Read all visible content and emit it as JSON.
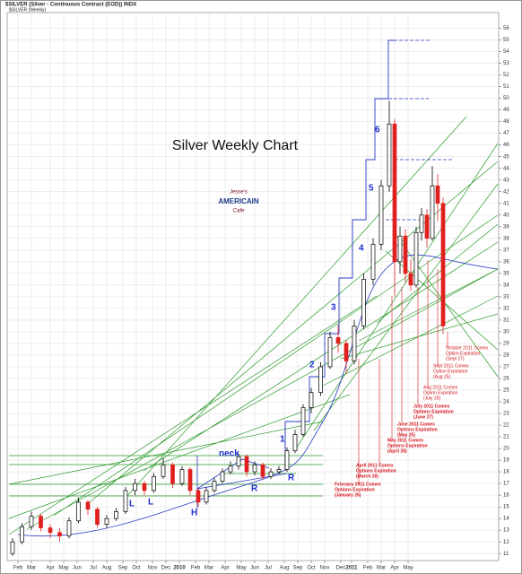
{
  "chart_data": {
    "type": "candlestick",
    "header": "$SILVER (Silver - Continuous Contract (EOD)) INDX",
    "subheader": "$SILVER (Weekly)",
    "title": "Silver Weekly Chart",
    "logo": [
      "Jesse's",
      "AMERICAIN",
      "Cafe"
    ],
    "annotations": [
      "neck",
      "H",
      "L",
      "L",
      "R",
      "R",
      "1",
      "2",
      "3",
      "4",
      "5",
      "6"
    ],
    "expirations": [
      [
        "February 2011 Comex",
        "Options Expiration",
        "(January 26)"
      ],
      [
        "April 2011 Comex",
        "Options Expiration",
        "(March 28)"
      ],
      [
        "May 2011 Comex",
        "Options Expiration",
        "(April 26)"
      ],
      [
        "June 2011 Comex",
        "Options Expiration",
        "(May 25)"
      ],
      [
        "July 2011 Comex",
        "Options Expiration",
        "(June 27)"
      ],
      [
        "Aug 2011 Comex",
        "Option Expiration",
        "(July 26)"
      ],
      [
        "Sept 2011 Comex",
        "Option Expiration",
        "(Aug 25)"
      ],
      [
        "October 2011 Comex",
        "Option Expiration",
        "(Sept 27)"
      ]
    ],
    "x": [
      0,
      3.5,
      7,
      10.5,
      14,
      17.5,
      21,
      24.5,
      28,
      31.5,
      35,
      38.5,
      42,
      45.5,
      49,
      52.5,
      56,
      59.5,
      63,
      66,
      69,
      72,
      75,
      78,
      81,
      84,
      87,
      90,
      93,
      96,
      99,
      102,
      105,
      108,
      111,
      114.5,
      118,
      121,
      124,
      127,
      130.5,
      134,
      137,
      140,
      142,
      144,
      146,
      148,
      150,
      152,
      154,
      156,
      158,
      160
    ],
    "open": [
      11.0,
      12.0,
      13.3,
      14.2,
      13.2,
      12.8,
      12.5,
      13.8,
      15.4,
      14.8,
      13.5,
      14.0,
      14.6,
      16.4,
      17.0,
      16.4,
      17.6,
      18.6,
      17.0,
      18.2,
      16.4,
      15.4,
      16.4,
      17.2,
      18.0,
      18.5,
      19.3,
      18.0,
      18.6,
      17.6,
      18.0,
      18.2,
      19.8,
      21.2,
      23.5,
      24.8,
      27.0,
      29.5,
      29.0,
      27.5,
      30.5,
      34.5,
      37.5,
      42.5,
      47.8,
      36.0,
      38.2,
      35.0,
      34.0,
      38.5,
      40.0,
      38.0,
      42.5,
      41.0
    ],
    "close": [
      12.0,
      13.3,
      14.2,
      13.2,
      12.8,
      12.5,
      13.8,
      15.4,
      14.8,
      13.5,
      14.0,
      14.6,
      16.4,
      17.0,
      16.4,
      17.6,
      18.6,
      17.0,
      18.2,
      16.4,
      15.4,
      16.4,
      17.2,
      18.0,
      18.5,
      19.3,
      18.0,
      18.6,
      17.6,
      18.0,
      18.2,
      19.8,
      21.2,
      23.5,
      24.8,
      27.0,
      29.5,
      29.0,
      27.5,
      30.5,
      34.5,
      37.5,
      42.5,
      47.8,
      36.0,
      38.2,
      35.0,
      34.0,
      38.5,
      40.0,
      38.0,
      42.5,
      41.0,
      30.5
    ],
    "high": [
      12.3,
      13.6,
      14.6,
      14.4,
      13.5,
      13.2,
      14.1,
      15.8,
      15.6,
      15.0,
      14.3,
      14.9,
      16.7,
      17.4,
      17.2,
      17.9,
      19.2,
      18.8,
      18.5,
      18.4,
      16.6,
      16.7,
      17.5,
      18.3,
      18.9,
      19.6,
      19.5,
      18.9,
      18.8,
      18.3,
      18.5,
      20.1,
      21.6,
      23.8,
      25.2,
      27.4,
      30.0,
      30.6,
      29.3,
      31.0,
      35.0,
      38.0,
      43.0,
      49.8,
      48.2,
      39.0,
      38.8,
      36.2,
      39.0,
      40.6,
      40.5,
      44.2,
      43.5,
      41.5
    ],
    "low": [
      10.8,
      11.8,
      13.0,
      12.9,
      12.3,
      12.0,
      12.3,
      13.6,
      14.3,
      13.2,
      13.2,
      13.8,
      14.4,
      16.0,
      16.0,
      16.2,
      17.4,
      16.6,
      16.8,
      16.0,
      15.0,
      15.2,
      16.2,
      17.0,
      17.8,
      18.2,
      17.6,
      17.7,
      17.3,
      17.4,
      17.8,
      18.0,
      19.6,
      21.0,
      23.0,
      24.5,
      26.8,
      28.2,
      26.5,
      27.2,
      30.2,
      34.0,
      37.0,
      42.0,
      33.0,
      35.0,
      34.2,
      33.5,
      33.8,
      37.8,
      37.2,
      37.8,
      39.5,
      29.8
    ],
    "up_color": "#000000",
    "down_color": "#e0201e",
    "xlim": [
      -2,
      180
    ],
    "xticks": [
      {
        "value": 2,
        "label": "Feb"
      },
      {
        "value": 7,
        "label": "Mar"
      },
      {
        "value": 14,
        "label": "Apr"
      },
      {
        "value": 19,
        "label": "May"
      },
      {
        "value": 24,
        "label": "Jun"
      },
      {
        "value": 30,
        "label": "Jul"
      },
      {
        "value": 35,
        "label": "Aug"
      },
      {
        "value": 41,
        "label": "Sep"
      },
      {
        "value": 46,
        "label": "Oct"
      },
      {
        "value": 52,
        "label": "Nov"
      },
      {
        "value": 57,
        "label": "Dec"
      },
      {
        "value": 62,
        "label": "2010"
      },
      {
        "value": 68,
        "label": "Feb"
      },
      {
        "value": 73,
        "label": "Mar"
      },
      {
        "value": 79,
        "label": "Apr"
      },
      {
        "value": 85,
        "label": "May"
      },
      {
        "value": 90,
        "label": "Jun"
      },
      {
        "value": 95,
        "label": "Jul"
      },
      {
        "value": 101,
        "label": "Aug"
      },
      {
        "value": 106,
        "label": "Sep"
      },
      {
        "value": 111,
        "label": "Oct"
      },
      {
        "value": 116,
        "label": "Nov"
      },
      {
        "value": 122,
        "label": "Dec"
      },
      {
        "value": 126,
        "label": "2011"
      },
      {
        "value": 132,
        "label": "Feb"
      },
      {
        "value": 137,
        "label": "Mar"
      },
      {
        "value": 142,
        "label": "Apr"
      },
      {
        "value": 147,
        "label": "May"
      }
    ],
    "ylim": [
      10.4,
      57.5
    ],
    "yticks": [
      11,
      12,
      13,
      14,
      15,
      16,
      17,
      18,
      19,
      20,
      21,
      22,
      23,
      24,
      25,
      26,
      27,
      28,
      29,
      30,
      31,
      32,
      33,
      34,
      35,
      36,
      37,
      38,
      39,
      40,
      41,
      42,
      43,
      44,
      45,
      46,
      47,
      48,
      49,
      50,
      51,
      52,
      53,
      54,
      55,
      56
    ],
    "grid": true
  }
}
